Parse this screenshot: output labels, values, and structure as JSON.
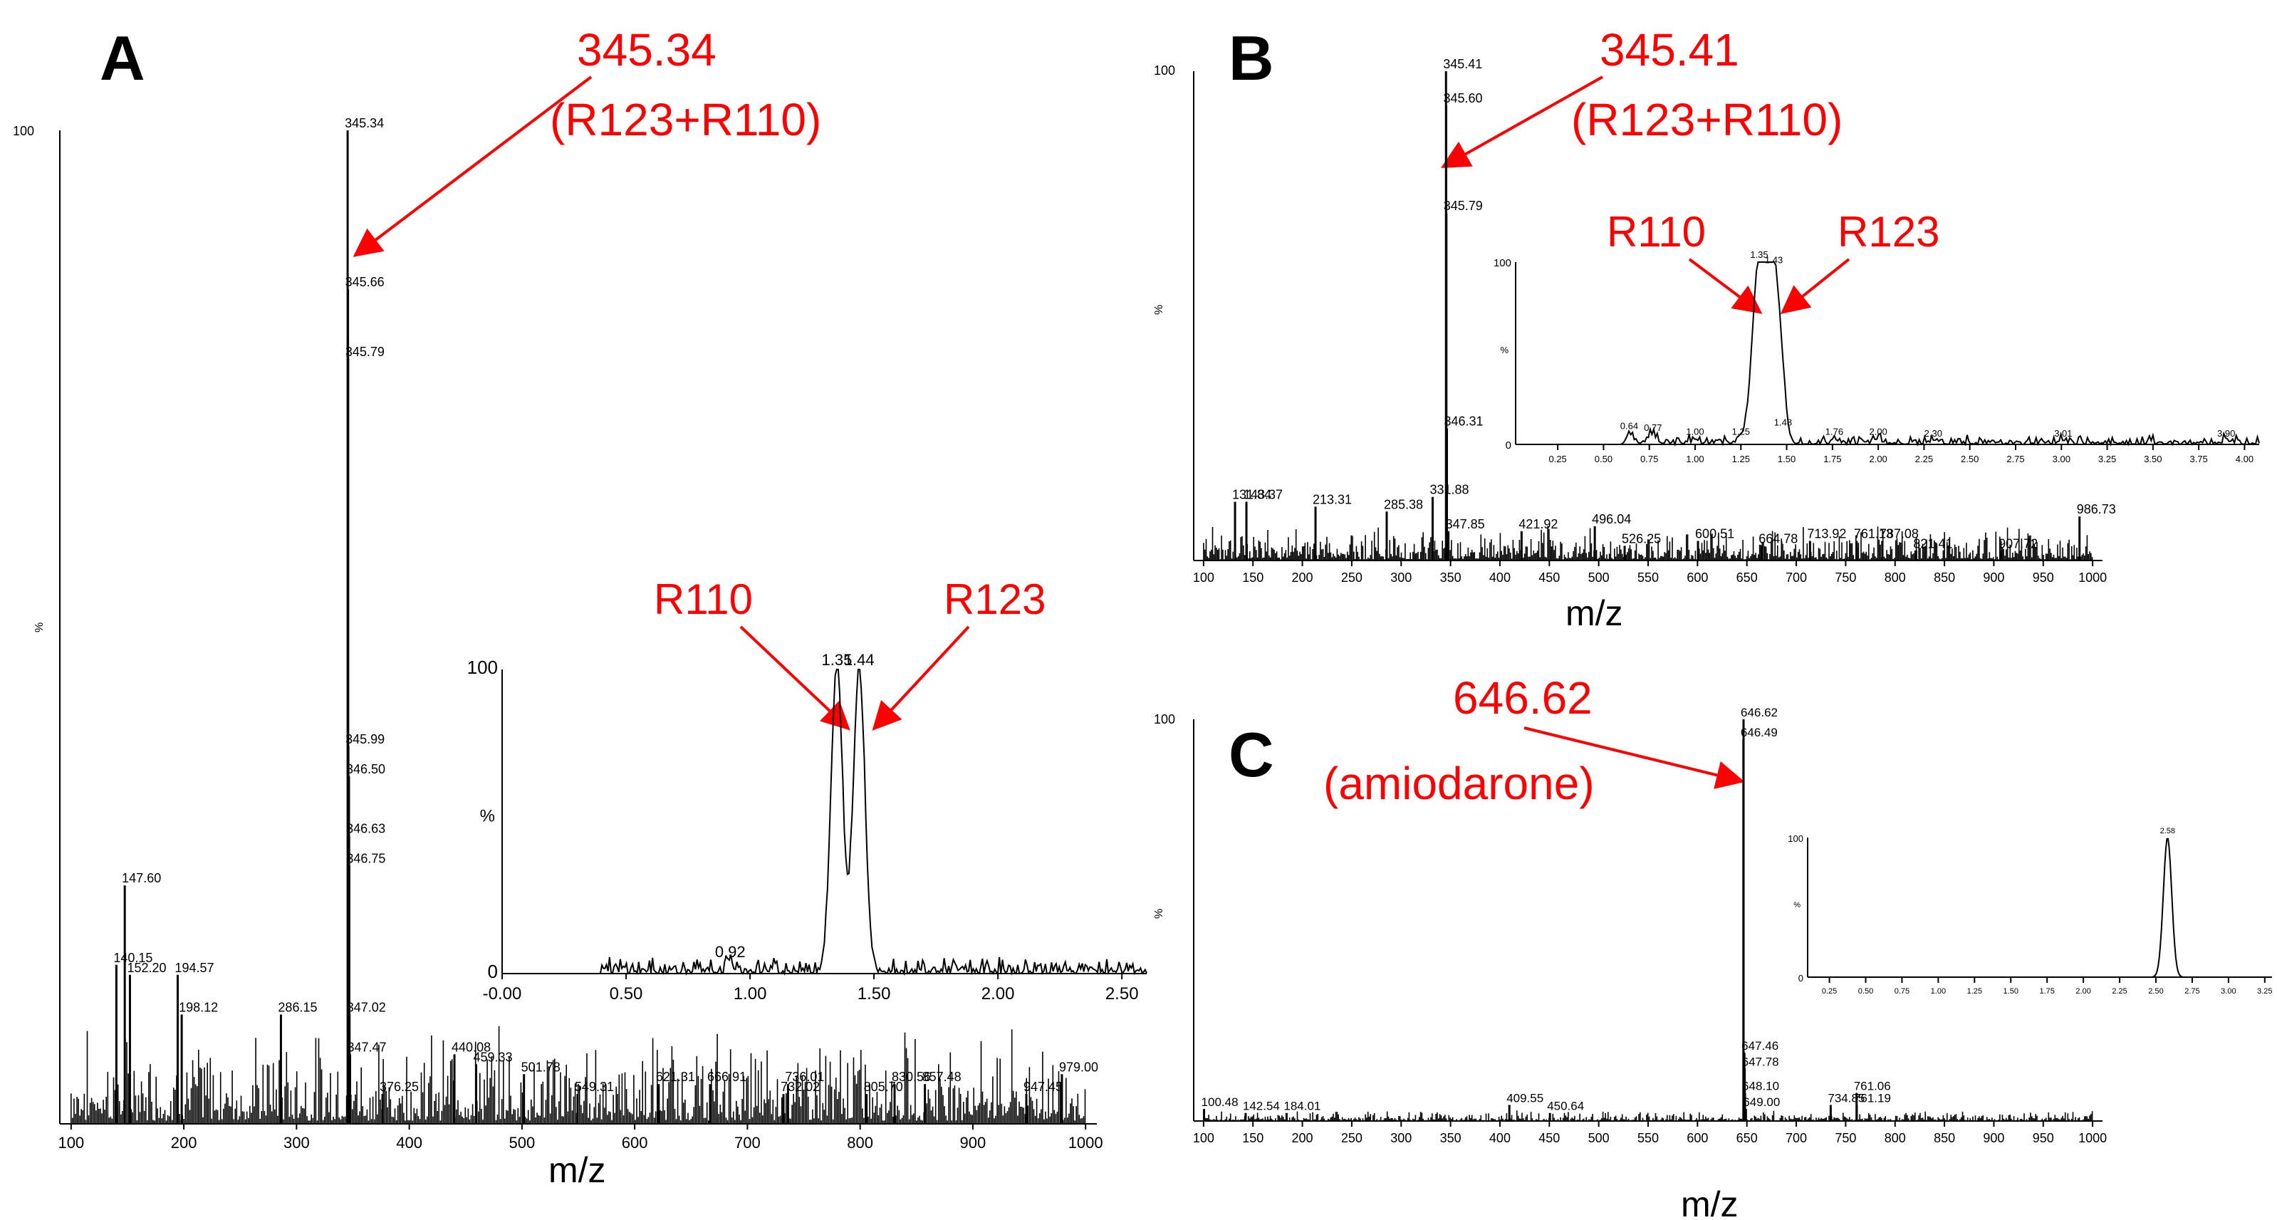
{
  "panels": [
    {
      "letter": "A",
      "xlabel": "m/z",
      "ylabel": "%",
      "ymax_label": "100"
    },
    {
      "letter": "B",
      "xlabel": "m/z",
      "ylabel": "%",
      "ymax_label": "100"
    },
    {
      "letter": "C",
      "xlabel": "m/z",
      "ylabel": "%",
      "ymax_label": "100"
    }
  ],
  "annotations": {
    "A_main_line1": "345.34",
    "A_main_line2": "(R123+R110)",
    "A_inset_left": "R110",
    "A_inset_right": "R123",
    "B_main_line1": "345.41",
    "B_main_line2": "(R123+R110)",
    "B_inset_left": "R110",
    "B_inset_right": "R123",
    "C_main_line1": "646.62",
    "C_main_line2": "(amiodarone)"
  },
  "colors": {
    "annotation": "#ff0000",
    "trace": "#000000",
    "background": "#ffffff"
  },
  "chart_data": [
    {
      "id": "A-spectrum",
      "type": "bar",
      "xlabel": "m/z",
      "ylabel": "%",
      "xlim": [
        90,
        1010
      ],
      "ylim": [
        0,
        100
      ],
      "xticks": [
        100,
        200,
        300,
        400,
        500,
        600,
        700,
        800,
        900,
        1000
      ],
      "yticks": [
        0,
        100
      ],
      "peaks": [
        {
          "x": 140.15,
          "y": 16,
          "label": "140.15"
        },
        {
          "x": 147.6,
          "y": 24,
          "label": "147.60"
        },
        {
          "x": 152.2,
          "y": 15,
          "label": "152.20"
        },
        {
          "x": 194.57,
          "y": 15,
          "label": "194.57"
        },
        {
          "x": 198.12,
          "y": 11,
          "label": "198.12"
        },
        {
          "x": 286.15,
          "y": 11,
          "label": "286.15"
        },
        {
          "x": 345.34,
          "y": 100,
          "label": "345.34"
        },
        {
          "x": 345.66,
          "y": 84,
          "label": "345.66"
        },
        {
          "x": 345.79,
          "y": 77,
          "label": "345.79"
        },
        {
          "x": 345.99,
          "y": 38,
          "label": "345.99"
        },
        {
          "x": 346.5,
          "y": 35,
          "label": "346.50"
        },
        {
          "x": 346.63,
          "y": 29,
          "label": "346.63"
        },
        {
          "x": 346.75,
          "y": 26,
          "label": "346.75"
        },
        {
          "x": 347.02,
          "y": 11,
          "label": "347.02"
        },
        {
          "x": 347.47,
          "y": 7,
          "label": "347.47"
        },
        {
          "x": 376.25,
          "y": 3,
          "label": "376.25"
        },
        {
          "x": 440.08,
          "y": 7,
          "label": "440.08"
        },
        {
          "x": 459.33,
          "y": 6,
          "label": "459.33"
        },
        {
          "x": 501.78,
          "y": 5,
          "label": "501.78"
        },
        {
          "x": 549.31,
          "y": 3,
          "label": "549.31"
        },
        {
          "x": 621.31,
          "y": 4,
          "label": "621.31"
        },
        {
          "x": 666.91,
          "y": 4,
          "label": "666.91"
        },
        {
          "x": 732.02,
          "y": 3,
          "label": "732.02"
        },
        {
          "x": 736.01,
          "y": 4,
          "label": "736.01"
        },
        {
          "x": 805.7,
          "y": 3,
          "label": "805.70"
        },
        {
          "x": 830.56,
          "y": 4,
          "label": "830.56"
        },
        {
          "x": 857.48,
          "y": 4,
          "label": "857.48"
        },
        {
          "x": 947.45,
          "y": 3,
          "label": "947.45"
        },
        {
          "x": 979.0,
          "y": 5,
          "label": "979.00"
        }
      ]
    },
    {
      "id": "A-inset",
      "type": "line",
      "xlabel": "",
      "ylabel": "%",
      "xlim": [
        0,
        2.6
      ],
      "ylim": [
        0,
        100
      ],
      "xticks": [
        "-0.00",
        "0.50",
        "1.00",
        "1.50",
        "2.00",
        "2.50"
      ],
      "yticks": [
        0,
        100
      ],
      "peak_labels": [
        {
          "x": 0.92,
          "y": 4,
          "label": "0.92"
        },
        {
          "x": 1.35,
          "y": 100,
          "label": "1.35"
        },
        {
          "x": 1.44,
          "y": 100,
          "label": "1.44"
        }
      ]
    },
    {
      "id": "B-spectrum",
      "type": "bar",
      "xlabel": "m/z",
      "ylabel": "%",
      "xlim": [
        90,
        1010
      ],
      "ylim": [
        0,
        100
      ],
      "xticks": [
        100,
        150,
        200,
        250,
        300,
        350,
        400,
        450,
        500,
        550,
        600,
        650,
        700,
        750,
        800,
        850,
        900,
        950,
        1000
      ],
      "yticks": [
        0,
        100
      ],
      "peaks": [
        {
          "x": 131.84,
          "y": 12,
          "label": "131.84"
        },
        {
          "x": 143.37,
          "y": 12,
          "label": "143.37"
        },
        {
          "x": 213.31,
          "y": 11,
          "label": "213.31"
        },
        {
          "x": 285.38,
          "y": 10,
          "label": "285.38"
        },
        {
          "x": 331.88,
          "y": 13,
          "label": "331.88"
        },
        {
          "x": 345.41,
          "y": 100,
          "label": "345.41"
        },
        {
          "x": 345.6,
          "y": 93,
          "label": "345.60"
        },
        {
          "x": 345.79,
          "y": 71,
          "label": "345.79"
        },
        {
          "x": 346.31,
          "y": 27,
          "label": "346.31"
        },
        {
          "x": 347.85,
          "y": 6,
          "label": "347.85"
        },
        {
          "x": 421.92,
          "y": 6,
          "label": "421.92"
        },
        {
          "x": 496.04,
          "y": 7,
          "label": "496.04"
        },
        {
          "x": 526.25,
          "y": 3,
          "label": "526.25"
        },
        {
          "x": 600.51,
          "y": 4,
          "label": "600.51"
        },
        {
          "x": 664.78,
          "y": 3,
          "label": "664.78"
        },
        {
          "x": 713.92,
          "y": 4,
          "label": "713.92"
        },
        {
          "x": 761.13,
          "y": 4,
          "label": "761.13"
        },
        {
          "x": 787.08,
          "y": 4,
          "label": "787.08"
        },
        {
          "x": 821.41,
          "y": 2,
          "label": "821.41"
        },
        {
          "x": 907.72,
          "y": 2,
          "label": "907.72"
        },
        {
          "x": 986.73,
          "y": 9,
          "label": "986.73"
        }
      ]
    },
    {
      "id": "B-inset",
      "type": "line",
      "xlabel": "",
      "ylabel": "%",
      "xlim": [
        0.02,
        4.08
      ],
      "ylim": [
        0,
        100
      ],
      "xticks": [
        "0.25",
        "0.50",
        "0.75",
        "1.00",
        "1.25",
        "1.50",
        "1.75",
        "2.00",
        "2.25",
        "2.50",
        "2.75",
        "3.00",
        "3.25",
        "3.50",
        "3.75",
        "4.00"
      ],
      "yticks": [
        0,
        100
      ],
      "peak_labels": [
        {
          "x": 0.64,
          "y": 6,
          "label": "0.64"
        },
        {
          "x": 0.77,
          "y": 5,
          "label": "0.77"
        },
        {
          "x": 1.0,
          "y": 3,
          "label": "1.00"
        },
        {
          "x": 1.25,
          "y": 3,
          "label": "1.25"
        },
        {
          "x": 1.35,
          "y": 100,
          "label": "1.35"
        },
        {
          "x": 1.43,
          "y": 97,
          "label": "1.43"
        },
        {
          "x": 1.48,
          "y": 8,
          "label": "1.48"
        },
        {
          "x": 1.76,
          "y": 3,
          "label": "1.76"
        },
        {
          "x": 2.0,
          "y": 3,
          "label": "2.00"
        },
        {
          "x": 2.3,
          "y": 2,
          "label": "2.30"
        },
        {
          "x": 3.01,
          "y": 2,
          "label": "3.01"
        },
        {
          "x": 3.9,
          "y": 2,
          "label": "3.90"
        }
      ]
    },
    {
      "id": "C-spectrum",
      "type": "bar",
      "xlabel": "m/z",
      "ylabel": "%",
      "xlim": [
        90,
        1010
      ],
      "ylim": [
        0,
        100
      ],
      "xticks": [
        100,
        150,
        200,
        250,
        300,
        350,
        400,
        450,
        500,
        550,
        600,
        650,
        700,
        750,
        800,
        850,
        900,
        950,
        1000
      ],
      "yticks": [
        0,
        100
      ],
      "peaks": [
        {
          "x": 100.48,
          "y": 3,
          "label": "100.48"
        },
        {
          "x": 142.54,
          "y": 2,
          "label": "142.54"
        },
        {
          "x": 184.01,
          "y": 2,
          "label": "184.01"
        },
        {
          "x": 409.55,
          "y": 4,
          "label": "409.55"
        },
        {
          "x": 450.64,
          "y": 2,
          "label": "450.64"
        },
        {
          "x": 646.49,
          "y": 95,
          "label": "646.49"
        },
        {
          "x": 646.62,
          "y": 100,
          "label": "646.62"
        },
        {
          "x": 647.46,
          "y": 17,
          "label": "647.46"
        },
        {
          "x": 647.78,
          "y": 13,
          "label": "647.78"
        },
        {
          "x": 648.1,
          "y": 7,
          "label": "648.10"
        },
        {
          "x": 649.0,
          "y": 3,
          "label": "649.00"
        },
        {
          "x": 734.85,
          "y": 4,
          "label": "734.85"
        },
        {
          "x": 761.06,
          "y": 7,
          "label": "761.06"
        },
        {
          "x": 761.19,
          "y": 4,
          "label": "761.19"
        }
      ]
    },
    {
      "id": "C-inset",
      "type": "line",
      "xlabel": "",
      "ylabel": "%",
      "xlim": [
        0.1,
        3.3
      ],
      "ylim": [
        0,
        100
      ],
      "xticks": [
        "0.25",
        "0.50",
        "0.75",
        "1.00",
        "1.25",
        "1.50",
        "1.75",
        "2.00",
        "2.25",
        "2.50",
        "2.75",
        "3.00",
        "3.25"
      ],
      "yticks": [
        0,
        100
      ],
      "peak_labels": [
        {
          "x": 2.58,
          "y": 100,
          "label": "2.58"
        }
      ]
    }
  ]
}
